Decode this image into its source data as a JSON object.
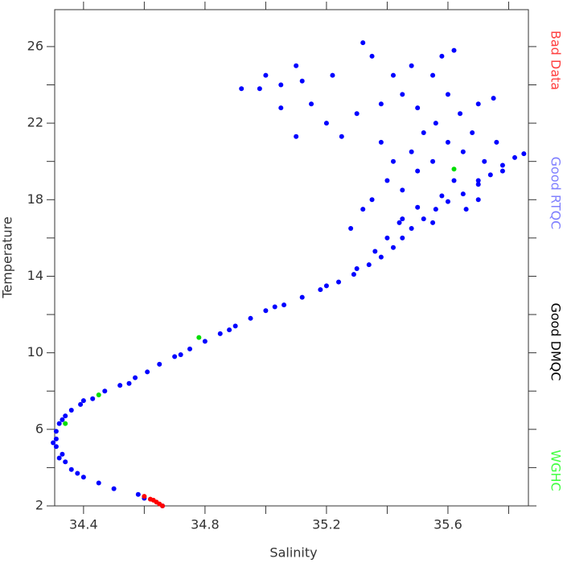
{
  "chart_data": {
    "type": "scatter",
    "x_label": "Salinity",
    "y_label": "Temperature",
    "xlim": [
      34.305,
      35.865
    ],
    "ylim": [
      2,
      27.93
    ],
    "xticks": [
      34.4,
      34.8,
      35.2,
      35.6
    ],
    "yticks": [
      2,
      6,
      10,
      14,
      18,
      22,
      26
    ],
    "xminor": [
      34.6,
      35.0,
      35.4,
      35.8
    ],
    "yminor": [
      4,
      8,
      12,
      16,
      20,
      24
    ],
    "series": [
      {
        "name": "Bad Data",
        "color": "#ff0000",
        "legend_color": "#ff4040",
        "x": [
          34.6,
          34.62,
          34.63,
          34.64,
          34.65,
          34.66
        ],
        "values": [
          2.5,
          2.35,
          2.3,
          2.2,
          2.1,
          2.0
        ]
      },
      {
        "name": "Good RTQC",
        "color": "#0000ff",
        "legend_color": "#8080ff",
        "x": [
          34.66,
          34.58,
          34.5,
          34.45,
          34.4,
          34.36,
          34.34,
          34.33,
          34.31,
          34.31,
          34.31,
          34.32,
          34.34,
          34.36,
          34.39,
          34.43,
          34.47,
          34.52,
          34.57,
          34.61,
          34.65,
          34.7,
          34.75,
          34.8,
          34.85,
          34.9,
          34.95,
          35.0,
          35.06,
          35.12,
          35.18,
          35.24,
          35.29,
          35.34,
          35.38,
          35.42,
          35.45,
          35.48,
          35.52,
          35.56,
          35.6,
          35.65,
          35.7,
          35.74,
          35.78,
          35.82,
          35.85,
          34.6,
          34.38,
          34.32,
          34.3,
          34.33,
          34.4,
          34.55,
          34.72,
          34.88,
          35.03,
          35.2,
          35.3,
          35.36,
          35.4,
          35.44,
          35.5,
          35.35,
          35.4,
          35.45,
          35.5,
          35.55,
          35.6,
          35.62,
          35.65,
          35.7,
          35.72,
          35.58,
          35.48,
          35.52,
          35.42,
          35.38,
          35.56,
          35.64,
          35.7,
          35.75,
          35.68,
          35.6,
          35.55,
          35.58,
          35.62,
          35.48,
          35.42,
          35.35,
          35.32,
          35.38,
          35.45,
          35.3,
          35.25,
          35.1,
          35.2,
          35.15,
          35.05,
          35.0,
          34.98,
          34.92,
          35.1,
          35.12,
          35.05,
          35.22,
          35.5,
          35.76,
          35.78,
          35.66,
          35.7,
          35.28,
          35.32,
          35.45,
          35.55
        ],
        "values": [
          2.0,
          2.6,
          2.9,
          3.2,
          3.5,
          3.9,
          4.3,
          4.7,
          5.1,
          5.5,
          5.9,
          6.3,
          6.7,
          7.0,
          7.3,
          7.6,
          8.0,
          8.3,
          8.7,
          9.0,
          9.4,
          9.8,
          10.2,
          10.6,
          11.0,
          11.4,
          11.8,
          12.2,
          12.5,
          12.9,
          13.3,
          13.7,
          14.1,
          14.6,
          15.0,
          15.5,
          16.0,
          16.5,
          17.0,
          17.5,
          17.9,
          18.3,
          18.8,
          19.3,
          19.8,
          20.2,
          20.4,
          2.4,
          3.7,
          4.5,
          5.3,
          6.5,
          7.5,
          8.4,
          9.9,
          11.2,
          12.4,
          13.5,
          14.4,
          15.3,
          16.0,
          16.8,
          17.6,
          18,
          19,
          18.5,
          19.5,
          20,
          21,
          19,
          20.5,
          19,
          20,
          18.2,
          20.5,
          21.5,
          20,
          21,
          22,
          22.5,
          23,
          23.3,
          21.5,
          23.5,
          24.5,
          25.5,
          25.8,
          25,
          24.5,
          25.5,
          26.2,
          23,
          23.5,
          22.5,
          21.3,
          21.3,
          22,
          23,
          24,
          24.5,
          23.8,
          23.8,
          25,
          24.2,
          22.8,
          24.5,
          22.8,
          21,
          19.5,
          17.5,
          18,
          16.5,
          17.5,
          17,
          16.8
        ]
      },
      {
        "name": "Good DMQC",
        "color": "#000000",
        "legend_color": "#000000",
        "x": [],
        "values": []
      },
      {
        "name": "WGHC",
        "color": "#00dd00",
        "legend_color": "#40ff40",
        "x": [
          34.34,
          34.45,
          34.78,
          35.62
        ],
        "values": [
          6.3,
          7.8,
          10.8,
          19.6
        ]
      }
    ]
  }
}
